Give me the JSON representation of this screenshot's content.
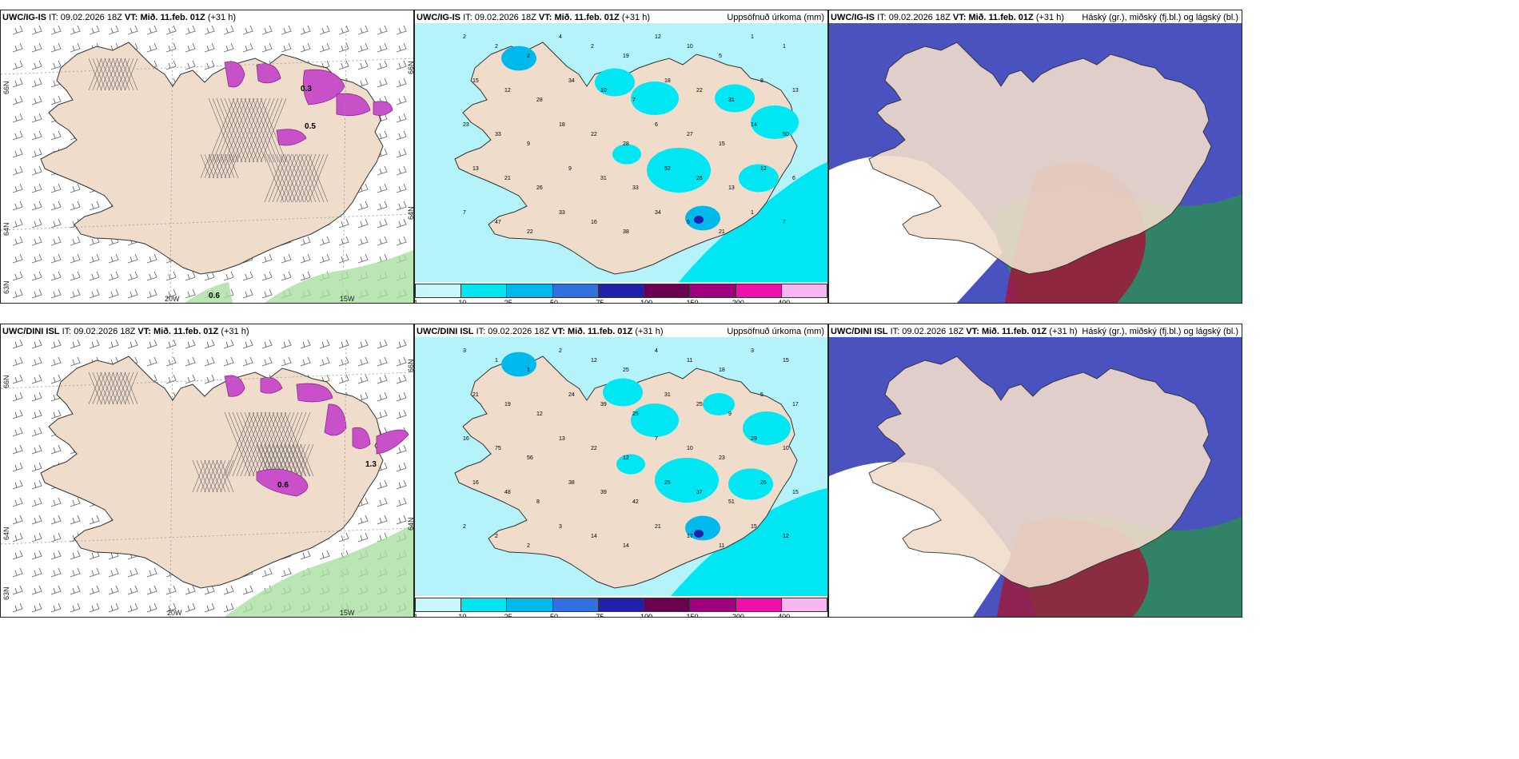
{
  "panels": [
    {
      "model": "UWC/IG-IS",
      "it_label": "IT:",
      "it_time": "09.02.2026 18Z",
      "vt_label": "VT:",
      "vt_time": "Mið. 11.feb. 01Z",
      "lead": "(+31 h)",
      "lat_labels": [
        "66N",
        "64N",
        "63N"
      ],
      "lon_labels": [
        "20W",
        "15W"
      ],
      "right_lat_labels": [
        "66N",
        "64N"
      ],
      "values": [
        "0.3",
        "0.5",
        "0.6"
      ]
    },
    {
      "model": "UWC/IG-IS",
      "it_label": "IT:",
      "it_time": "09.02.2026 18Z",
      "vt_label": "VT:",
      "vt_time": "Mið. 11.feb. 01Z",
      "lead": "(+31 h)",
      "right_title": "Uppsöfnuð úrkoma (mm)",
      "numbers": [
        "2",
        "2",
        "2",
        "4",
        "2",
        "19",
        "12",
        "10",
        "5",
        "1",
        "1",
        "15",
        "12",
        "28",
        "34",
        "10",
        "7",
        "18",
        "22",
        "31",
        "8",
        "13",
        "23",
        "33",
        "9",
        "18",
        "22",
        "28",
        "6",
        "27",
        "15",
        "14",
        "50",
        "13",
        "21",
        "26",
        "9",
        "31",
        "33",
        "52",
        "26",
        "13",
        "12",
        "6",
        "7",
        "47",
        "22",
        "33",
        "16",
        "38",
        "34",
        "9",
        "21",
        "1",
        "7"
      ]
    },
    {
      "model": "UWC/IG-IS",
      "it_label": "IT:",
      "it_time": "09.02.2026 18Z",
      "vt_label": "VT:",
      "vt_time": "Mið. 11.feb. 01Z",
      "lead": "(+31 h)",
      "right_title": "Háský (gr.), miðský (fj.bl.) og lágský (bl.)"
    },
    {
      "model": "UWC/DINI ISL",
      "it_label": "IT:",
      "it_time": "09.02.2026 18Z",
      "vt_label": "VT:",
      "vt_time": "Mið. 11.feb. 01Z",
      "lead": "(+31 h)",
      "lat_labels": [
        "66N",
        "64N",
        "63N"
      ],
      "lon_labels": [
        "20W",
        "15W"
      ],
      "right_lat_labels": [
        "66N",
        "64N"
      ],
      "values": [
        "0.6",
        "1.3"
      ]
    },
    {
      "model": "UWC/DINI ISL",
      "it_label": "IT:",
      "it_time": "09.02.2026 18Z",
      "vt_label": "VT:",
      "vt_time": "Mið. 11.feb. 01Z",
      "lead": "(+31 h)",
      "right_title": "Uppsöfnuð úrkoma (mm)",
      "numbers": [
        "3",
        "1",
        "1",
        "2",
        "12",
        "25",
        "4",
        "11",
        "18",
        "3",
        "15",
        "21",
        "19",
        "12",
        "24",
        "39",
        "25",
        "31",
        "25",
        "9",
        "5",
        "17",
        "16",
        "75",
        "56",
        "13",
        "22",
        "12",
        "7",
        "10",
        "23",
        "29",
        "10",
        "16",
        "48",
        "8",
        "38",
        "39",
        "42",
        "25",
        "37",
        "51",
        "26",
        "15",
        "2",
        "2",
        "2",
        "3",
        "14",
        "14",
        "21",
        "17",
        "11",
        "15",
        "12"
      ]
    },
    {
      "model": "UWC/DINI ISL",
      "it_label": "IT:",
      "it_time": "09.02.2026 18Z",
      "vt_label": "VT:",
      "vt_time": "Mið. 11.feb. 01Z",
      "lead": "(+31 h)",
      "right_title": "Háský (gr.), miðský (fj.bl.) og lágský (bl.)"
    }
  ],
  "colorbar": {
    "ticks": [
      "1",
      "10",
      "25",
      "50",
      "75",
      "100",
      "150",
      "200",
      "400"
    ],
    "colors": [
      "#c8f6fa",
      "#00e5f0",
      "#00b9ec",
      "#3070e0",
      "#2020a8",
      "#6a0050",
      "#a00080",
      "#ee10a8",
      "#f8b6f0"
    ]
  },
  "colors": {
    "land": "#f0dccb",
    "snow_pink": "#c850c8",
    "precip_light": "#b5f3fa",
    "precip_mid": "#00e6f2",
    "cloud_high": "#2e8b57",
    "cloud_mid": "#a01838",
    "cloud_low": "#4a52c0"
  }
}
